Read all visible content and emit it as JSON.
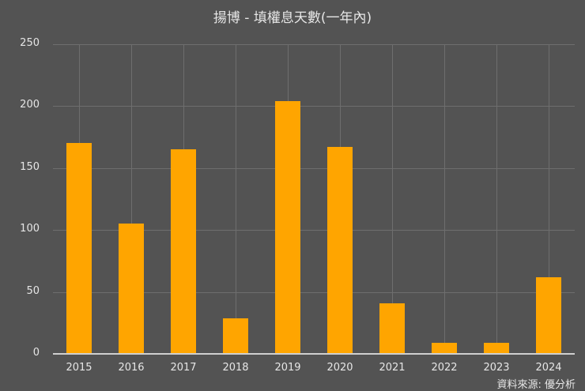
{
  "chart_data": {
    "type": "bar",
    "title": "揚博 - 填權息天數(一年內)",
    "xlabel": "",
    "ylabel": "",
    "categories": [
      "2015",
      "2016",
      "2017",
      "2018",
      "2019",
      "2020",
      "2021",
      "2022",
      "2023",
      "2024"
    ],
    "values": [
      170,
      105,
      165,
      29,
      204,
      167,
      41,
      9,
      9,
      62
    ],
    "ylim": [
      0,
      250
    ],
    "yticks": [
      "0",
      "50",
      "100",
      "150",
      "200",
      "250"
    ],
    "grid": true,
    "bar_color": "#ffa500",
    "background": "#535353",
    "source": "資料來源: 優分析"
  }
}
